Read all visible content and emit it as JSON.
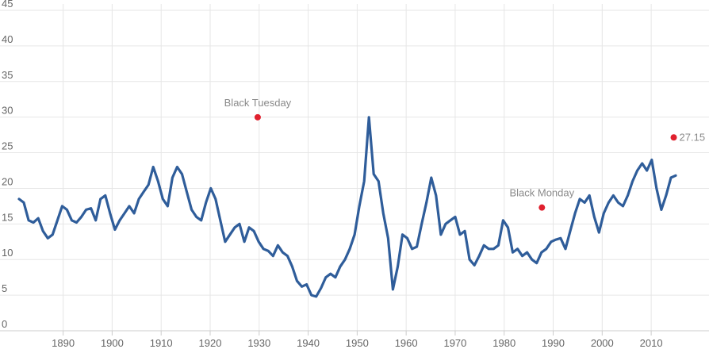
{
  "chart_data": {
    "type": "line",
    "title": "",
    "xlabel": "",
    "ylabel": "",
    "xlim": [
      1881,
      2015
    ],
    "ylim": [
      0,
      45
    ],
    "grid": true,
    "y_ticks": [
      0,
      5,
      10,
      15,
      20,
      25,
      30,
      35,
      40,
      45
    ],
    "x_ticks": [
      1890,
      1900,
      1910,
      1920,
      1930,
      1940,
      1950,
      1960,
      1970,
      1980,
      1990,
      2000,
      2010
    ],
    "colors": {
      "line": "#2f5d9a",
      "marker": "#e0202e",
      "grid": "#e6e6e6",
      "axis": "#cccccc"
    },
    "series": [
      {
        "values": [
          [
            1881,
            18.5
          ],
          [
            1882,
            18.0
          ],
          [
            1883,
            15.5
          ],
          [
            1884,
            15.2
          ],
          [
            1885,
            15.8
          ],
          [
            1886,
            14.0
          ],
          [
            1887,
            13.0
          ],
          [
            1888,
            13.5
          ],
          [
            1889,
            15.5
          ],
          [
            1890,
            17.5
          ],
          [
            1891,
            17.0
          ],
          [
            1892,
            15.5
          ],
          [
            1893,
            15.2
          ],
          [
            1894,
            16.0
          ],
          [
            1895,
            17.0
          ],
          [
            1896,
            17.2
          ],
          [
            1897,
            15.5
          ],
          [
            1898,
            18.5
          ],
          [
            1899,
            19.0
          ],
          [
            1900,
            16.5
          ],
          [
            1901,
            14.2
          ],
          [
            1902,
            15.5
          ],
          [
            1903,
            16.5
          ],
          [
            1904,
            17.5
          ],
          [
            1905,
            16.5
          ],
          [
            1906,
            18.5
          ],
          [
            1907,
            19.5
          ],
          [
            1908,
            20.5
          ],
          [
            1909,
            23.0
          ],
          [
            1910,
            21.0
          ],
          [
            1911,
            18.5
          ],
          [
            1912,
            17.5
          ],
          [
            1913,
            21.5
          ],
          [
            1914,
            23.0
          ],
          [
            1915,
            22.0
          ],
          [
            1916,
            19.5
          ],
          [
            1917,
            17.0
          ],
          [
            1918,
            16.0
          ],
          [
            1919,
            15.5
          ],
          [
            1920,
            18.0
          ],
          [
            1921,
            20.0
          ],
          [
            1922,
            18.5
          ],
          [
            1923,
            15.5
          ],
          [
            1924,
            12.5
          ],
          [
            1925,
            13.5
          ],
          [
            1926,
            14.5
          ],
          [
            1927,
            15.0
          ],
          [
            1928,
            12.5
          ],
          [
            1929,
            14.5
          ],
          [
            1930,
            14.0
          ],
          [
            1931,
            12.5
          ],
          [
            1932,
            11.5
          ],
          [
            1933,
            11.2
          ],
          [
            1934,
            10.5
          ],
          [
            1935,
            12.0
          ],
          [
            1936,
            11.0
          ],
          [
            1937,
            10.5
          ],
          [
            1938,
            9.0
          ],
          [
            1939,
            7.0
          ],
          [
            1940,
            6.2
          ],
          [
            1941,
            6.5
          ],
          [
            1942,
            5.0
          ],
          [
            1943,
            4.8
          ],
          [
            1944,
            6.0
          ],
          [
            1945,
            7.5
          ],
          [
            1946,
            8.0
          ],
          [
            1947,
            7.5
          ],
          [
            1948,
            9.0
          ],
          [
            1949,
            10.0
          ],
          [
            1950,
            11.5
          ],
          [
            1951,
            13.5
          ],
          [
            1952,
            17.5
          ],
          [
            1953,
            21.0
          ],
          [
            1954,
            29.98
          ],
          [
            1955,
            22.0
          ],
          [
            1956,
            21.0
          ],
          [
            1957,
            16.5
          ],
          [
            1958,
            13.0
          ],
          [
            1959,
            5.8
          ],
          [
            1960,
            9.0
          ],
          [
            1961,
            13.5
          ],
          [
            1962,
            13.0
          ],
          [
            1963,
            11.5
          ],
          [
            1964,
            11.8
          ],
          [
            1965,
            15.0
          ],
          [
            1966,
            18.0
          ],
          [
            1967,
            21.5
          ],
          [
            1968,
            19.0
          ],
          [
            1969,
            13.5
          ],
          [
            1970,
            15.0
          ],
          [
            1971,
            15.5
          ],
          [
            1972,
            16.0
          ],
          [
            1973,
            13.5
          ],
          [
            1974,
            14.0
          ],
          [
            1975,
            10.0
          ],
          [
            1976,
            9.2
          ],
          [
            1977,
            10.5
          ],
          [
            1978,
            12.0
          ],
          [
            1979,
            11.5
          ],
          [
            1980,
            11.5
          ],
          [
            1981,
            12.0
          ],
          [
            1982,
            15.5
          ],
          [
            1983,
            14.5
          ],
          [
            1984,
            11.0
          ],
          [
            1985,
            11.5
          ],
          [
            1986,
            10.5
          ],
          [
            1987,
            11.0
          ],
          [
            1988,
            10.0
          ],
          [
            1989,
            9.5
          ],
          [
            1990,
            11.0
          ],
          [
            1991,
            11.5
          ],
          [
            1992,
            12.5
          ],
          [
            1993,
            12.8
          ],
          [
            1994,
            13.0
          ],
          [
            1995,
            11.5
          ],
          [
            1996,
            14.0
          ],
          [
            1997,
            16.5
          ],
          [
            1998,
            18.5
          ],
          [
            1999,
            18.0
          ],
          [
            2000,
            19.0
          ],
          [
            2001,
            16.0
          ],
          [
            2002,
            13.8
          ],
          [
            2003,
            16.5
          ],
          [
            2004,
            18.0
          ],
          [
            2005,
            19.0
          ],
          [
            2006,
            18.0
          ],
          [
            2007,
            17.5
          ],
          [
            2008,
            19.0
          ],
          [
            2009,
            21.0
          ],
          [
            2010,
            22.5
          ],
          [
            2011,
            23.5
          ],
          [
            2012,
            22.5
          ],
          [
            2013,
            24.0
          ],
          [
            2014,
            20.0
          ],
          [
            2015,
            17.0
          ],
          [
            2016,
            19.0
          ],
          [
            2017,
            21.5
          ],
          [
            2018,
            21.8
          ]
        ]
      }
    ],
    "annotations": [
      {
        "label": "Black Tuesday",
        "x": 1929.7,
        "y": 29.98
      },
      {
        "label": "Black Monday",
        "x": 1987.7,
        "y": 17.3
      },
      {
        "label": "27.15",
        "x": 2014.6,
        "y": 27.15
      }
    ]
  }
}
